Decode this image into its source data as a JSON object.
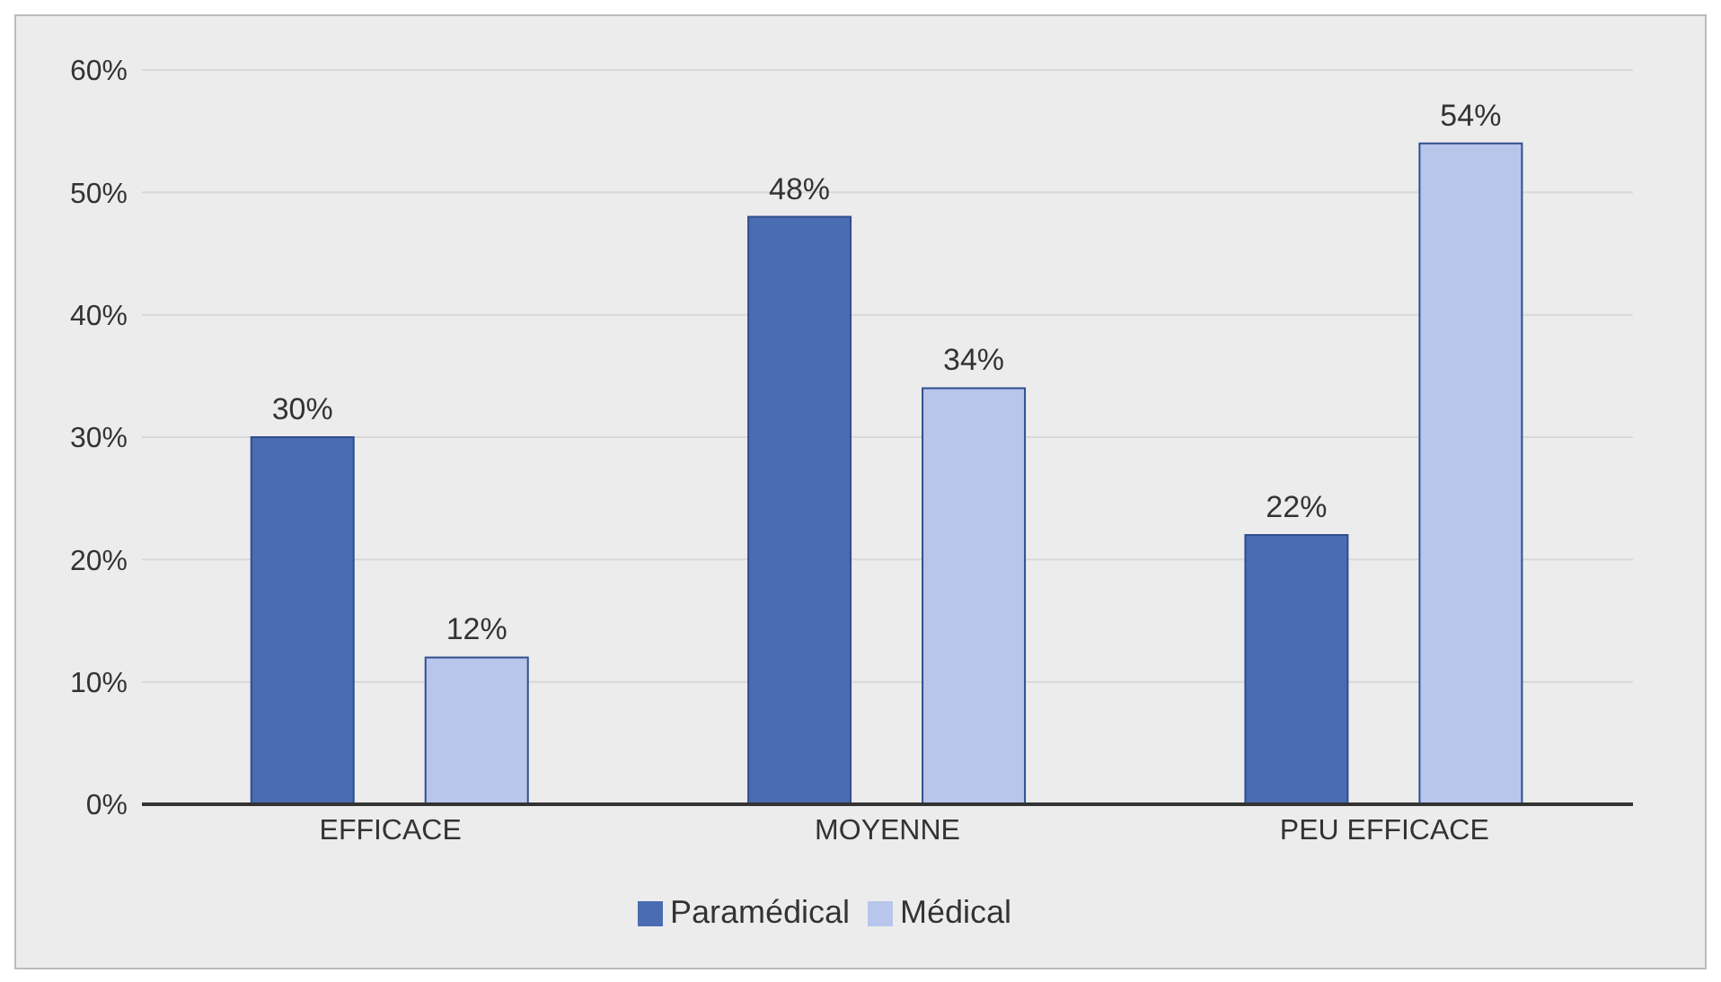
{
  "chart_data": {
    "type": "bar",
    "categories": [
      "EFFICACE",
      "MOYENNE",
      "PEU EFFICACE"
    ],
    "series": [
      {
        "name": "Paramédical",
        "color": "#4a6cb0",
        "values": [
          30,
          48,
          22
        ],
        "value_labels": [
          "30%",
          "48%",
          "22%"
        ]
      },
      {
        "name": "Médical",
        "color": "#b7c6ea",
        "values": [
          12,
          34,
          54
        ],
        "value_labels": [
          "12%",
          "34%",
          "54%"
        ]
      }
    ],
    "ylim": [
      0,
      60
    ],
    "yticks": [
      {
        "value": 0,
        "label": "0%"
      },
      {
        "value": 10,
        "label": "10%"
      },
      {
        "value": 20,
        "label": "20%"
      },
      {
        "value": 30,
        "label": "30%"
      },
      {
        "value": 40,
        "label": "40%"
      },
      {
        "value": 50,
        "label": "50%"
      },
      {
        "value": 60,
        "label": "60%"
      }
    ],
    "grid": "y",
    "legend": "bottom"
  }
}
